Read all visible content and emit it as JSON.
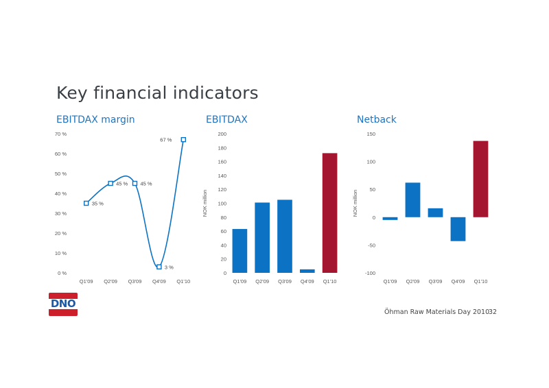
{
  "title": "Key financial indicators",
  "footer": "Öhman Raw Materials Day 2010",
  "page_number": "32",
  "logo_text": "DNO",
  "colors": {
    "blue": "#0b72c4",
    "red": "#a4152f",
    "heading": "#1f74c1"
  },
  "chart_data": [
    {
      "type": "line",
      "title": "EBITDAX margin",
      "categories": [
        "Q1'09",
        "Q2'09",
        "Q3'09",
        "Q4'09",
        "Q1'10"
      ],
      "values": [
        35,
        45,
        45,
        3,
        67
      ],
      "data_labels": [
        "35 %",
        "45 %",
        "45 %",
        "3 %",
        "67 %"
      ],
      "ylim": [
        0,
        70
      ],
      "yticks": [
        "0 %",
        "10 %",
        "20 %",
        "30 %",
        "40 %",
        "50 %",
        "60 %",
        "70 %"
      ],
      "ylabel": ""
    },
    {
      "type": "bar",
      "title": "EBITDAX",
      "categories": [
        "Q1'09",
        "Q2'09",
        "Q3'09",
        "Q4'09",
        "Q1'10"
      ],
      "values": [
        63,
        101,
        105,
        5,
        172
      ],
      "highlight_last": true,
      "ylim": [
        0,
        200
      ],
      "yticks": [
        "0",
        "20",
        "40",
        "60",
        "80",
        "100",
        "120",
        "140",
        "160",
        "180",
        "200"
      ],
      "ylabel": "NOK million"
    },
    {
      "type": "bar",
      "title": "Netback",
      "categories": [
        "Q1'09",
        "Q2'09",
        "Q3'09",
        "Q4'09",
        "Q1'10"
      ],
      "values": [
        -5,
        62,
        16,
        -43,
        137
      ],
      "highlight_last": true,
      "ylim": [
        -100,
        150
      ],
      "yticks": [
        "-100",
        "-50",
        "0",
        "50",
        "100",
        "150"
      ],
      "ylabel": "NOK million"
    }
  ]
}
